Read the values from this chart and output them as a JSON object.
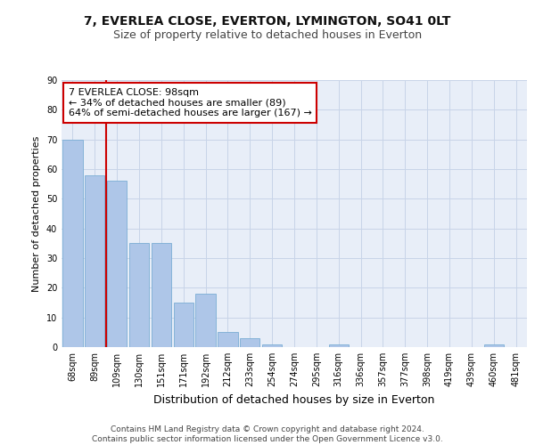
{
  "title1": "7, EVERLEA CLOSE, EVERTON, LYMINGTON, SO41 0LT",
  "title2": "Size of property relative to detached houses in Everton",
  "xlabel": "Distribution of detached houses by size in Everton",
  "ylabel": "Number of detached properties",
  "categories": [
    "68sqm",
    "89sqm",
    "109sqm",
    "130sqm",
    "151sqm",
    "171sqm",
    "192sqm",
    "212sqm",
    "233sqm",
    "254sqm",
    "274sqm",
    "295sqm",
    "316sqm",
    "336sqm",
    "357sqm",
    "377sqm",
    "398sqm",
    "419sqm",
    "439sqm",
    "460sqm",
    "481sqm"
  ],
  "values": [
    70,
    58,
    56,
    35,
    35,
    15,
    18,
    5,
    3,
    1,
    0,
    0,
    1,
    0,
    0,
    0,
    0,
    0,
    0,
    1,
    0
  ],
  "bar_color": "#aec6e8",
  "bar_edge_color": "#7aadd4",
  "property_line_x": 1.5,
  "property_line_color": "#cc0000",
  "annotation_text": "7 EVERLEA CLOSE: 98sqm\n← 34% of detached houses are smaller (89)\n64% of semi-detached houses are larger (167) →",
  "annotation_box_color": "#ffffff",
  "annotation_box_edge": "#cc0000",
  "ylim": [
    0,
    90
  ],
  "yticks": [
    0,
    10,
    20,
    30,
    40,
    50,
    60,
    70,
    80,
    90
  ],
  "grid_color": "#c8d4e8",
  "background_color": "#e8eef8",
  "footer_text": "Contains HM Land Registry data © Crown copyright and database right 2024.\nContains public sector information licensed under the Open Government Licence v3.0.",
  "title1_fontsize": 10,
  "title2_fontsize": 9,
  "xlabel_fontsize": 9,
  "ylabel_fontsize": 8,
  "annotation_fontsize": 8,
  "footer_fontsize": 6.5,
  "tick_fontsize": 7
}
